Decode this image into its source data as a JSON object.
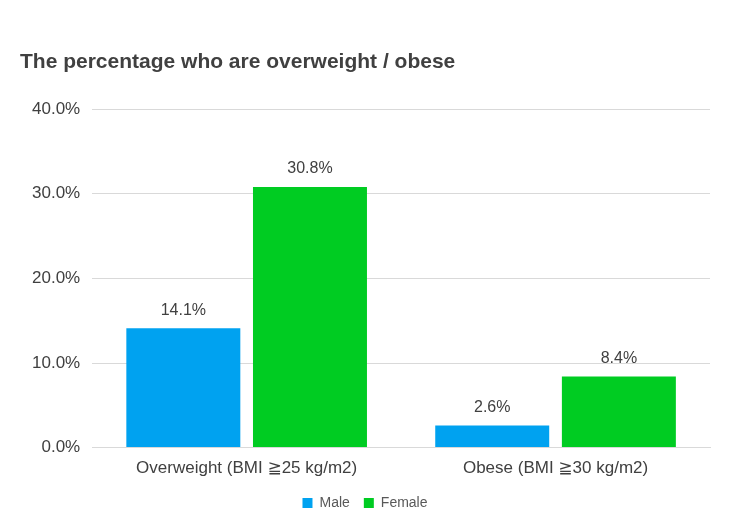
{
  "chart_data": {
    "type": "bar",
    "title": "The percentage who are overweight / obese",
    "categories": [
      "Overweight (BMI ≧25 kg/m2)",
      "Obese (BMI ≧30 kg/m2)"
    ],
    "series": [
      {
        "name": "Male",
        "color": "#00a2f0",
        "values": [
          14.1,
          2.6
        ],
        "value_labels": [
          "14.1%",
          "2.6%"
        ]
      },
      {
        "name": "Female",
        "color": "#00cc22",
        "values": [
          30.8,
          8.4
        ],
        "value_labels": [
          "30.8%",
          "8.4%"
        ]
      }
    ],
    "ylim": [
      0,
      40
    ],
    "yticks": [
      {
        "value": 0,
        "label": "0.0%"
      },
      {
        "value": 10,
        "label": "10.0%"
      },
      {
        "value": 20,
        "label": "20.0%"
      },
      {
        "value": 30,
        "label": "30.0%"
      },
      {
        "value": 40,
        "label": "40.0%"
      }
    ],
    "grid": true,
    "legend": "bottom",
    "data_labels": true
  }
}
